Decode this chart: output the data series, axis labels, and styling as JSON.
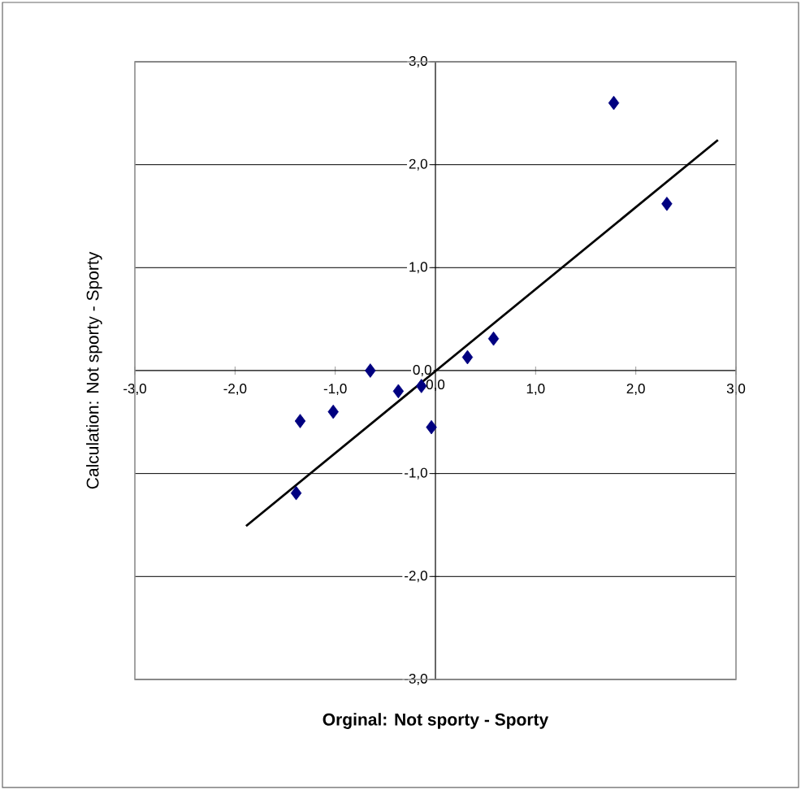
{
  "chart_data": {
    "type": "scatter",
    "xlabel": "Orginal: Not sporty - Sporty",
    "ylabel": "Calculation: Not sporty - Sporty",
    "xlim": [
      -3,
      3
    ],
    "ylim": [
      -3,
      3
    ],
    "xticks": [
      {
        "value": -3,
        "label": "-3,0"
      },
      {
        "value": -2,
        "label": "-2,0"
      },
      {
        "value": -1,
        "label": "-1,0"
      },
      {
        "value": 0,
        "label": "0,0"
      },
      {
        "value": 1,
        "label": "1,0"
      },
      {
        "value": 2,
        "label": "2,0"
      },
      {
        "value": 3,
        "label": "3,0"
      }
    ],
    "yticks": [
      {
        "value": -3,
        "label": "-3,0"
      },
      {
        "value": -2,
        "label": "-2,0"
      },
      {
        "value": -1,
        "label": "-1,0"
      },
      {
        "value": 0,
        "label": "0,0"
      },
      {
        "value": 1,
        "label": "1,0"
      },
      {
        "value": 2,
        "label": "2,0"
      },
      {
        "value": 3,
        "label": "3,0"
      }
    ],
    "grid": "y",
    "series": [
      {
        "color": "#000080",
        "marker": "diamond",
        "x": [
          -1.35,
          -1.39,
          -1.02,
          -0.65,
          -0.37,
          -0.14,
          -0.04,
          0.32,
          0.58,
          1.78,
          2.31
        ],
        "values": [
          -0.49,
          -1.19,
          -0.4,
          0.0,
          -0.2,
          -0.15,
          -0.55,
          0.13,
          0.31,
          2.6,
          1.62
        ]
      },
      {
        "type": "line",
        "color": "#000000",
        "marker": "none",
        "line_style": "solid",
        "x": [
          -1.89,
          2.82
        ],
        "values": [
          -1.51,
          2.24
        ]
      }
    ]
  }
}
